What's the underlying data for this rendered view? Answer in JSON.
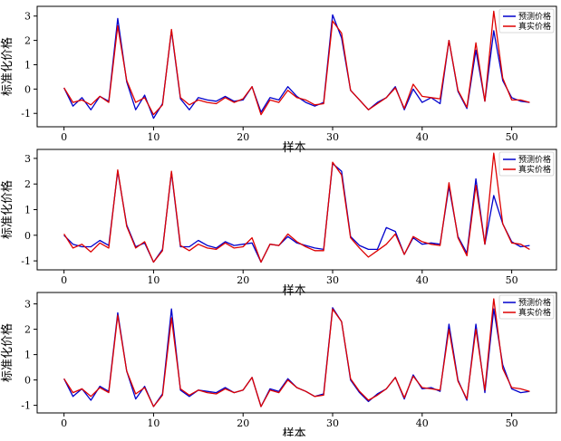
{
  "chart_data": [
    {
      "type": "line",
      "xlabel": "样本",
      "ylabel": "标准化价格",
      "xlim": [
        -3,
        55
      ],
      "ylim": [
        -1.55,
        3.4
      ],
      "xticks": [
        0,
        10,
        20,
        30,
        40,
        50
      ],
      "yticks": [
        -1,
        0,
        1,
        2,
        3
      ],
      "legend_position": "top-right",
      "colors": {
        "pred": "#0000cc",
        "true": "#dd0000"
      },
      "x": [
        0,
        1,
        2,
        3,
        4,
        5,
        6,
        7,
        8,
        9,
        10,
        11,
        12,
        13,
        14,
        15,
        16,
        17,
        18,
        19,
        20,
        21,
        22,
        23,
        24,
        25,
        26,
        27,
        28,
        29,
        30,
        31,
        32,
        33,
        34,
        35,
        36,
        37,
        38,
        39,
        40,
        41,
        42,
        43,
        44,
        45,
        46,
        47,
        48,
        49,
        50,
        51,
        52
      ],
      "series": [
        {
          "name": "预测价格",
          "color": "#0000cc",
          "values": [
            0.05,
            -0.7,
            -0.35,
            -0.85,
            -0.3,
            -0.5,
            2.9,
            0.3,
            -0.85,
            -0.25,
            -1.2,
            -0.6,
            2.4,
            -0.4,
            -0.85,
            -0.35,
            -0.45,
            -0.5,
            -0.3,
            -0.5,
            -0.45,
            0.1,
            -0.95,
            -0.35,
            -0.45,
            0.1,
            -0.3,
            -0.55,
            -0.7,
            -0.55,
            3.05,
            2.1,
            -0.05,
            -0.45,
            -0.85,
            -0.55,
            -0.35,
            0.1,
            -0.85,
            0.0,
            -0.55,
            -0.35,
            -0.6,
            2.0,
            -0.1,
            -0.8,
            1.6,
            -0.5,
            2.4,
            0.35,
            -0.35,
            -0.5,
            -0.55
          ]
        },
        {
          "name": "真实价格",
          "color": "#dd0000",
          "values": [
            0.05,
            -0.55,
            -0.45,
            -0.65,
            -0.3,
            -0.55,
            2.6,
            0.35,
            -0.55,
            -0.35,
            -1.05,
            -0.65,
            2.45,
            -0.35,
            -0.65,
            -0.45,
            -0.55,
            -0.6,
            -0.35,
            -0.55,
            -0.4,
            0.1,
            -1.05,
            -0.45,
            -0.55,
            -0.05,
            -0.35,
            -0.45,
            -0.65,
            -0.6,
            2.8,
            2.3,
            -0.05,
            -0.45,
            -0.85,
            -0.6,
            -0.35,
            0.05,
            -0.8,
            0.2,
            -0.3,
            -0.35,
            -0.4,
            2.0,
            -0.05,
            -0.75,
            1.9,
            -0.5,
            3.2,
            0.45,
            -0.45,
            -0.45,
            -0.55
          ]
        }
      ]
    },
    {
      "type": "line",
      "xlabel": "样本",
      "ylabel": "标准化价格",
      "xlim": [
        -3,
        55
      ],
      "ylim": [
        -1.35,
        3.35
      ],
      "xticks": [
        0,
        10,
        20,
        30,
        40,
        50
      ],
      "yticks": [
        -1,
        0,
        1,
        2,
        3
      ],
      "legend_position": "top-right",
      "colors": {
        "pred": "#0000cc",
        "true": "#dd0000"
      },
      "x": [
        0,
        1,
        2,
        3,
        4,
        5,
        6,
        7,
        8,
        9,
        10,
        11,
        12,
        13,
        14,
        15,
        16,
        17,
        18,
        19,
        20,
        21,
        22,
        23,
        24,
        25,
        26,
        27,
        28,
        29,
        30,
        31,
        32,
        33,
        34,
        35,
        36,
        37,
        38,
        39,
        40,
        41,
        42,
        43,
        44,
        45,
        46,
        47,
        48,
        49,
        50,
        51,
        52
      ],
      "series": [
        {
          "name": "预测价格",
          "color": "#0000cc",
          "values": [
            0.0,
            -0.35,
            -0.45,
            -0.45,
            -0.2,
            -0.4,
            2.5,
            0.4,
            -0.45,
            -0.3,
            -1.05,
            -0.55,
            2.45,
            -0.45,
            -0.45,
            -0.2,
            -0.4,
            -0.5,
            -0.25,
            -0.4,
            -0.35,
            -0.3,
            -1.05,
            -0.35,
            -0.4,
            -0.05,
            -0.3,
            -0.4,
            -0.5,
            -0.55,
            2.8,
            2.5,
            -0.05,
            -0.4,
            -0.55,
            -0.55,
            0.3,
            0.15,
            -0.75,
            -0.1,
            -0.35,
            -0.3,
            -0.35,
            1.9,
            -0.05,
            -0.7,
            2.2,
            -0.35,
            1.55,
            0.45,
            -0.25,
            -0.45,
            -0.4
          ]
        },
        {
          "name": "真实价格",
          "color": "#dd0000",
          "values": [
            0.05,
            -0.5,
            -0.35,
            -0.65,
            -0.3,
            -0.5,
            2.55,
            0.35,
            -0.5,
            -0.25,
            -1.05,
            -0.6,
            2.5,
            -0.4,
            -0.6,
            -0.35,
            -0.5,
            -0.55,
            -0.3,
            -0.5,
            -0.45,
            -0.1,
            -1.05,
            -0.35,
            -0.4,
            0.05,
            -0.25,
            -0.45,
            -0.6,
            -0.6,
            2.85,
            2.35,
            -0.1,
            -0.5,
            -0.85,
            -0.6,
            -0.35,
            0.05,
            -0.75,
            -0.05,
            -0.25,
            -0.35,
            -0.4,
            2.05,
            -0.1,
            -0.8,
            1.95,
            -0.35,
            3.2,
            0.45,
            -0.3,
            -0.35,
            -0.55
          ]
        }
      ]
    },
    {
      "type": "line",
      "xlabel": "样本",
      "ylabel": "标准化价格",
      "xlim": [
        -3,
        55
      ],
      "ylim": [
        -1.3,
        3.45
      ],
      "xticks": [
        0,
        10,
        20,
        30,
        40,
        50
      ],
      "yticks": [
        -1,
        0,
        1,
        2,
        3
      ],
      "legend_position": "top-right",
      "colors": {
        "pred": "#0000cc",
        "true": "#dd0000"
      },
      "x": [
        0,
        1,
        2,
        3,
        4,
        5,
        6,
        7,
        8,
        9,
        10,
        11,
        12,
        13,
        14,
        15,
        16,
        17,
        18,
        19,
        20,
        21,
        22,
        23,
        24,
        25,
        26,
        27,
        28,
        29,
        30,
        31,
        32,
        33,
        34,
        35,
        36,
        37,
        38,
        39,
        40,
        41,
        42,
        43,
        44,
        45,
        46,
        47,
        48,
        49,
        50,
        51,
        52
      ],
      "series": [
        {
          "name": "预测价格",
          "color": "#0000cc",
          "values": [
            0.05,
            -0.65,
            -0.35,
            -0.8,
            -0.25,
            -0.45,
            2.65,
            0.35,
            -0.75,
            -0.25,
            -1.05,
            -0.55,
            2.8,
            -0.4,
            -0.65,
            -0.4,
            -0.45,
            -0.5,
            -0.3,
            -0.5,
            -0.4,
            0.1,
            -1.05,
            -0.35,
            -0.45,
            0.05,
            -0.3,
            -0.45,
            -0.65,
            -0.55,
            2.85,
            2.3,
            0.0,
            -0.5,
            -0.85,
            -0.55,
            -0.35,
            0.1,
            -0.75,
            0.2,
            -0.35,
            -0.3,
            -0.45,
            2.2,
            0.0,
            -0.8,
            2.2,
            -0.5,
            2.8,
            0.6,
            -0.35,
            -0.5,
            -0.45
          ]
        },
        {
          "name": "真实价格",
          "color": "#dd0000",
          "values": [
            0.05,
            -0.5,
            -0.35,
            -0.65,
            -0.3,
            -0.5,
            2.55,
            0.35,
            -0.55,
            -0.3,
            -1.05,
            -0.6,
            2.45,
            -0.35,
            -0.6,
            -0.4,
            -0.5,
            -0.55,
            -0.35,
            -0.5,
            -0.4,
            0.1,
            -1.05,
            -0.4,
            -0.5,
            0.0,
            -0.3,
            -0.45,
            -0.65,
            -0.6,
            2.8,
            2.3,
            0.05,
            -0.45,
            -0.8,
            -0.6,
            -0.35,
            0.1,
            -0.7,
            0.15,
            -0.3,
            -0.35,
            -0.4,
            2.0,
            -0.05,
            -0.75,
            2.0,
            -0.4,
            3.2,
            0.45,
            -0.3,
            -0.35,
            -0.45
          ]
        }
      ]
    }
  ]
}
